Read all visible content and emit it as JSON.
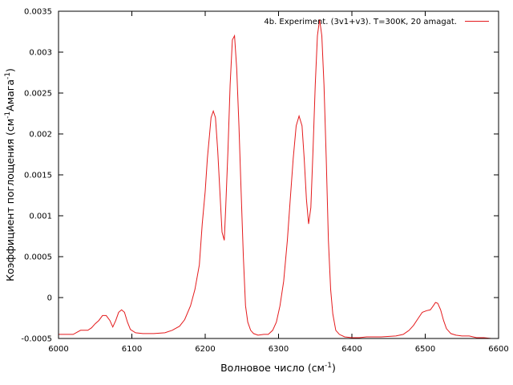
{
  "chart_data": {
    "type": "line",
    "title": "",
    "xlabel": "Волновое число (см",
    "xlabel_sup": "-1",
    "xlabel_tail": ")",
    "ylabel": "Коэффициент поглощения (см",
    "ylabel_sup1": "-1",
    "ylabel_mid": "Амага",
    "ylabel_sup2": "-1",
    "ylabel_tail": ")",
    "xlim": [
      6000,
      6600
    ],
    "ylim": [
      -0.0005,
      0.0035
    ],
    "xticks": [
      6000,
      6100,
      6200,
      6300,
      6400,
      6500,
      6600
    ],
    "xtick_labels": [
      "6000",
      "6100",
      "6200",
      "6300",
      "6400",
      "6500",
      "6600"
    ],
    "yticks": [
      -0.0005,
      0,
      0.0005,
      0.001,
      0.0015,
      0.002,
      0.0025,
      0.003,
      0.0035
    ],
    "ytick_labels": [
      "-0.0005",
      "0",
      "0.0005",
      "0.001",
      "0.0015",
      "0.002",
      "0.0025",
      "0.003",
      "0.0035"
    ],
    "grid": false,
    "legend_position": "top-right",
    "series": [
      {
        "name": "4b. Experiment. (3v1+v3). T=300K, 20 amagat.",
        "color": "#e41a1c",
        "x": [
          6000,
          6010,
          6020,
          6030,
          6040,
          6045,
          6050,
          6055,
          6060,
          6065,
          6070,
          6074,
          6078,
          6082,
          6086,
          6090,
          6094,
          6098,
          6105,
          6115,
          6130,
          6145,
          6155,
          6165,
          6172,
          6180,
          6186,
          6192,
          6196,
          6200,
          6203,
          6206,
          6208,
          6211,
          6214,
          6217,
          6220,
          6223,
          6226,
          6228,
          6231,
          6234,
          6237,
          6240,
          6243,
          6246,
          6249,
          6252,
          6255,
          6258,
          6262,
          6266,
          6272,
          6280,
          6286,
          6292,
          6297,
          6302,
          6307,
          6312,
          6316,
          6320,
          6324,
          6328,
          6332,
          6335,
          6338,
          6341,
          6344,
          6347,
          6350,
          6353,
          6356,
          6359,
          6362,
          6365,
          6368,
          6371,
          6374,
          6378,
          6383,
          6390,
          6400,
          6410,
          6420,
          6440,
          6460,
          6470,
          6478,
          6484,
          6490,
          6496,
          6502,
          6507,
          6511,
          6514,
          6517,
          6521,
          6525,
          6529,
          6535,
          6542,
          6550,
          6560,
          6570,
          6580,
          6590,
          6600
        ],
        "y": [
          -0.00045,
          -0.00045,
          -0.00045,
          -0.0004,
          -0.0004,
          -0.00037,
          -0.00032,
          -0.00028,
          -0.00022,
          -0.00022,
          -0.00028,
          -0.00036,
          -0.00028,
          -0.00018,
          -0.00015,
          -0.00018,
          -0.0003,
          -0.00039,
          -0.00043,
          -0.00044,
          -0.00044,
          -0.00043,
          -0.0004,
          -0.00035,
          -0.00027,
          -0.0001,
          0.0001,
          0.0004,
          0.0009,
          0.0013,
          0.0017,
          0.002,
          0.0022,
          0.00228,
          0.0022,
          0.0018,
          0.0013,
          0.0008,
          0.0007,
          0.0011,
          0.0018,
          0.0026,
          0.00315,
          0.0032,
          0.0028,
          0.0021,
          0.0013,
          0.0005,
          -0.0001,
          -0.0003,
          -0.0004,
          -0.00044,
          -0.00046,
          -0.00045,
          -0.00045,
          -0.0004,
          -0.0003,
          -0.0001,
          0.0002,
          0.0007,
          0.0012,
          0.0017,
          0.0021,
          0.00222,
          0.0021,
          0.0017,
          0.0012,
          0.0009,
          0.0011,
          0.0018,
          0.0026,
          0.0032,
          0.0034,
          0.0032,
          0.0026,
          0.0017,
          0.0007,
          0.0001,
          -0.0002,
          -0.0004,
          -0.00045,
          -0.00048,
          -0.00049,
          -0.00049,
          -0.00048,
          -0.00048,
          -0.00047,
          -0.00045,
          -0.0004,
          -0.00034,
          -0.00026,
          -0.00018,
          -0.00016,
          -0.00015,
          -0.0001,
          -6e-05,
          -7e-05,
          -0.00015,
          -0.00028,
          -0.00038,
          -0.00044,
          -0.00046,
          -0.00047,
          -0.00047,
          -0.00049,
          -0.00049,
          -0.0005,
          -0.0005
        ]
      }
    ]
  }
}
